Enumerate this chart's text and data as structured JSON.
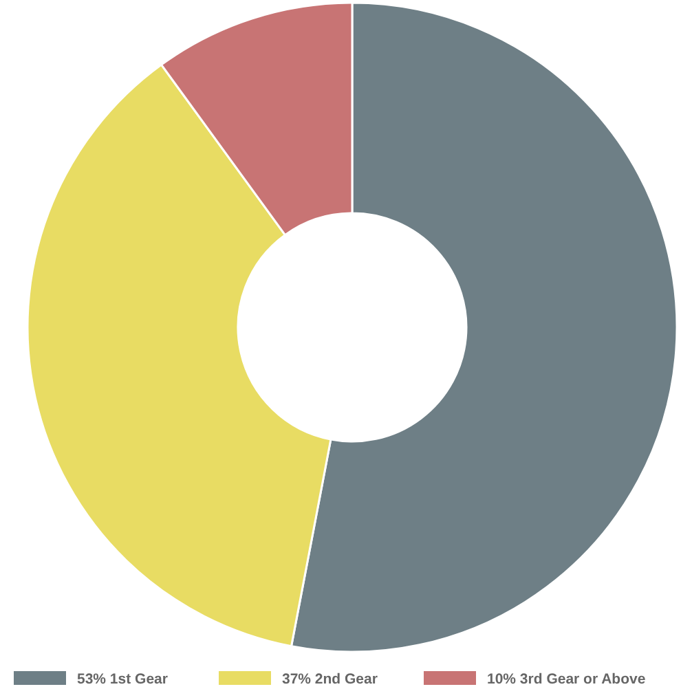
{
  "chart_data": {
    "type": "donut",
    "categories": [
      "53% 1st Gear",
      "37% 2nd Gear",
      "10% 3rd Gear or Above"
    ],
    "values": [
      53,
      37,
      10
    ],
    "colors": [
      "#6e7f86",
      "#e8dc63",
      "#c87474"
    ],
    "legend": "bottom"
  }
}
